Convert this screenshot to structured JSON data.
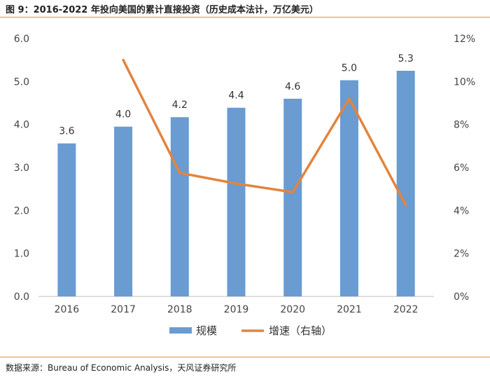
{
  "title": "图 9：2016-2022 年投向美国的累计直接投资（历史成本法计，万亿美元）",
  "source": "数据来源：Bureau of Economic Analysis，天风证券研究所",
  "colors": {
    "bar": "#6a9bd1",
    "line": "#e3843c",
    "rule": "#e38a3a",
    "axis": "#bfbfbf"
  },
  "chart_data": {
    "type": "bar+line",
    "categories": [
      "2016",
      "2017",
      "2018",
      "2019",
      "2020",
      "2021",
      "2022"
    ],
    "series": [
      {
        "name": "规模",
        "type": "bar",
        "axis": "left",
        "values": [
          3.56,
          3.95,
          4.17,
          4.39,
          4.6,
          5.03,
          5.25
        ],
        "labels": [
          "3.6",
          "4.0",
          "4.2",
          "4.4",
          "4.6",
          "5.0",
          "5.3"
        ]
      },
      {
        "name": "增速（右轴）",
        "type": "line",
        "axis": "right",
        "values": [
          null,
          11.0,
          5.75,
          5.25,
          4.85,
          9.2,
          4.25
        ]
      }
    ],
    "y_left": {
      "min": 0,
      "max": 6,
      "ticks": [
        "0.0",
        "1.0",
        "2.0",
        "3.0",
        "4.0",
        "5.0",
        "6.0"
      ]
    },
    "y_right": {
      "min": 0,
      "max": 12,
      "ticks": [
        "0%",
        "2%",
        "4%",
        "6%",
        "8%",
        "10%",
        "12%"
      ]
    },
    "legend": [
      "规模",
      "增速（右轴）"
    ]
  }
}
